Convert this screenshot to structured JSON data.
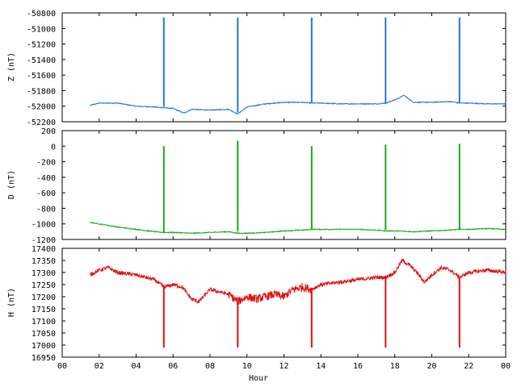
{
  "chart_data": [
    {
      "type": "line",
      "ylabel": "Z (nT)",
      "ylim": [
        -52200,
        -50800
      ],
      "yticks": [
        -50800,
        -51000,
        -51200,
        -51400,
        -51600,
        -51800,
        -52000,
        -52200
      ],
      "xlim": [
        0,
        24
      ],
      "color": "#1f78d8",
      "baseline": {
        "x": [
          1.5,
          2.0,
          3.0,
          4.0,
          5.0,
          5.5,
          6.0,
          6.6,
          7.0,
          8.0,
          9.0,
          9.5,
          10.0,
          11.0,
          12.0,
          13.0,
          13.5,
          14.0,
          15.0,
          16.0,
          17.0,
          17.5,
          18.0,
          18.5,
          19.0,
          20.0,
          21.0,
          21.5,
          22.0,
          23.0,
          24.0
        ],
        "y": [
          -51990,
          -51960,
          -51960,
          -52000,
          -52010,
          -52020,
          -52030,
          -52090,
          -52040,
          -52050,
          -52040,
          -52100,
          -52010,
          -51970,
          -51950,
          -51950,
          -51960,
          -51960,
          -51970,
          -51970,
          -51970,
          -51960,
          -51920,
          -51860,
          -51950,
          -51950,
          -51940,
          -51960,
          -51960,
          -51970,
          -51970
        ]
      },
      "spikes": [
        {
          "x": 5.5,
          "from": -52010,
          "to": -50860
        },
        {
          "x": 9.5,
          "from": -52080,
          "to": -50860
        },
        {
          "x": 13.5,
          "from": -51960,
          "to": -50860
        },
        {
          "x": 17.5,
          "from": -51970,
          "to": -50860
        },
        {
          "x": 21.5,
          "from": -51960,
          "to": -50860
        }
      ]
    },
    {
      "type": "line",
      "ylabel": "D (nT)",
      "ylim": [
        -1200,
        200
      ],
      "yticks": [
        200,
        0,
        -200,
        -400,
        -600,
        -800,
        -1000,
        -1200
      ],
      "xlim": [
        0,
        24
      ],
      "color": "#1aaa1a",
      "baseline": {
        "x": [
          1.5,
          2.0,
          3.0,
          4.0,
          5.0,
          5.5,
          6.0,
          7.0,
          8.0,
          9.0,
          9.5,
          10.0,
          11.0,
          12.0,
          13.0,
          13.5,
          14.0,
          15.0,
          16.0,
          17.0,
          17.5,
          18.0,
          19.0,
          20.0,
          21.0,
          21.5,
          22.0,
          23.0,
          24.0
        ],
        "y": [
          -980,
          -1000,
          -1040,
          -1070,
          -1100,
          -1110,
          -1110,
          -1120,
          -1110,
          -1100,
          -1120,
          -1120,
          -1110,
          -1090,
          -1080,
          -1070,
          -1070,
          -1070,
          -1070,
          -1080,
          -1090,
          -1090,
          -1100,
          -1090,
          -1080,
          -1070,
          -1070,
          -1060,
          -1070
        ]
      },
      "spikes": [
        {
          "x": 5.5,
          "from": -1110,
          "to": 0
        },
        {
          "x": 9.5,
          "from": -1100,
          "to": 70
        },
        {
          "x": 13.5,
          "from": -1070,
          "to": 0
        },
        {
          "x": 17.5,
          "from": -1080,
          "to": 20
        },
        {
          "x": 21.5,
          "from": -1070,
          "to": 30
        }
      ]
    },
    {
      "type": "line",
      "ylabel": "H (nT)",
      "ylim": [
        16950,
        17400
      ],
      "yticks": [
        17400,
        17350,
        17300,
        17250,
        17200,
        17150,
        17100,
        17050,
        17000,
        16950
      ],
      "xlim": [
        0,
        24
      ],
      "xticks": [
        "00",
        "02",
        "04",
        "06",
        "08",
        "10",
        "12",
        "14",
        "16",
        "18",
        "20",
        "22",
        "00"
      ],
      "xlabel": "Hour",
      "color": "#e01010",
      "baseline": {
        "x": [
          1.5,
          2.0,
          2.5,
          3.0,
          4.0,
          5.0,
          5.5,
          6.0,
          6.5,
          7.0,
          7.4,
          8.0,
          8.5,
          9.0,
          9.5,
          10.0,
          10.5,
          11.0,
          11.5,
          12.0,
          12.5,
          13.0,
          13.5,
          14.0,
          15.0,
          16.0,
          17.0,
          17.5,
          18.0,
          18.4,
          18.8,
          19.2,
          19.6,
          20.0,
          20.5,
          21.0,
          21.5,
          22.0,
          23.0,
          24.0
        ],
        "y": [
          17290,
          17310,
          17320,
          17300,
          17290,
          17270,
          17240,
          17250,
          17240,
          17190,
          17180,
          17230,
          17220,
          17210,
          17180,
          17200,
          17190,
          17200,
          17210,
          17200,
          17230,
          17240,
          17230,
          17250,
          17260,
          17270,
          17280,
          17280,
          17300,
          17350,
          17330,
          17300,
          17260,
          17290,
          17320,
          17310,
          17280,
          17300,
          17310,
          17300
        ]
      },
      "spikes": [
        {
          "x": 5.5,
          "from": 17240,
          "to": 16990
        },
        {
          "x": 9.5,
          "from": 17180,
          "to": 16990
        },
        {
          "x": 13.5,
          "from": 17230,
          "to": 16990
        },
        {
          "x": 17.5,
          "from": 17280,
          "to": 16990
        },
        {
          "x": 21.5,
          "from": 17280,
          "to": 16990
        }
      ]
    }
  ]
}
